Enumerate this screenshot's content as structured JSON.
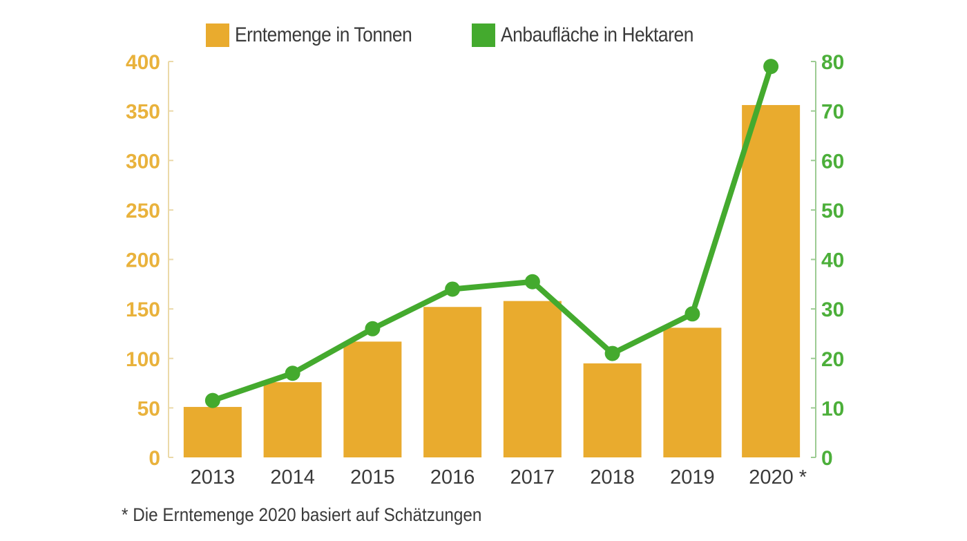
{
  "legend": {
    "bars_label": "Erntemenge in Tonnen",
    "line_label": "Anbaufläche in Hektaren"
  },
  "footnote": "* Die Erntemenge 2020 basiert auf Schätzungen",
  "colors": {
    "bars": "#E9AB2E",
    "line": "#44AA2E",
    "left_axis": "#E9B23C",
    "right_axis": "#4CAF3A",
    "text": "#3a3a3a"
  },
  "chart_data": {
    "type": "bar",
    "title": "",
    "categories": [
      "2013",
      "2014",
      "2015",
      "2016",
      "2017",
      "2018",
      "2019",
      "2020 *"
    ],
    "series": [
      {
        "name": "Erntemenge in Tonnen",
        "type": "bar",
        "axis": "left",
        "values": [
          51,
          76,
          117,
          152,
          158,
          95,
          131,
          356
        ]
      },
      {
        "name": "Anbaufläche in Hektaren",
        "type": "line",
        "axis": "right",
        "values": [
          11.5,
          17,
          26,
          34,
          35.5,
          21,
          29,
          79
        ]
      }
    ],
    "xlabel": "",
    "ylabel_left": "",
    "ylabel_right": "",
    "ylim_left": [
      0,
      400
    ],
    "ylim_right": [
      0,
      80
    ],
    "left_ticks": [
      0,
      50,
      100,
      150,
      200,
      250,
      300,
      350,
      400
    ],
    "right_ticks": [
      0,
      10,
      20,
      30,
      40,
      50,
      60,
      70,
      80
    ],
    "grid": false,
    "legend_position": "top",
    "annotations": [
      "* Die Erntemenge 2020 basiert auf Schätzungen"
    ]
  }
}
